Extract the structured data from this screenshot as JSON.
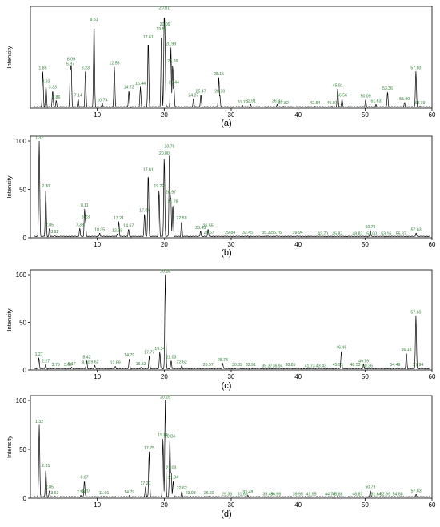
{
  "chart_data": [
    {
      "type": "line",
      "panel_label": "(a)",
      "ylabel": "Intensity",
      "xlim": [
        0,
        60
      ],
      "ylim": [
        0,
        100
      ],
      "xticks": [
        10,
        20,
        30,
        40,
        50,
        60
      ],
      "yticks": [],
      "line_color": "#000000",
      "label_color": "#2e7d32",
      "peaks": [
        {
          "rt": 1.85,
          "y": 38,
          "label": "1.85"
        },
        {
          "rt": 2.33,
          "y": 24,
          "label": "2.33"
        },
        {
          "rt": 3.33,
          "y": 18,
          "label": "3.33"
        },
        {
          "rt": 3.86,
          "y": 8,
          "label": "3.86"
        },
        {
          "rt": 5.97,
          "y": 42,
          "label": "5.97"
        },
        {
          "rt": 6.09,
          "y": 47,
          "label": "6.09"
        },
        {
          "rt": 7.14,
          "y": 10,
          "label": "7.14"
        },
        {
          "rt": 8.23,
          "y": 38,
          "label": "8.23"
        },
        {
          "rt": 9.51,
          "y": 88,
          "label": "9.51"
        },
        {
          "rt": 10.74,
          "y": 5,
          "label": "10.74"
        },
        {
          "rt": 12.55,
          "y": 43,
          "label": "12.55"
        },
        {
          "rt": 14.72,
          "y": 18,
          "label": "14.72"
        },
        {
          "rt": 16.44,
          "y": 22,
          "label": "16.44"
        },
        {
          "rt": 17.61,
          "y": 70,
          "label": "17.61"
        },
        {
          "rt": 19.59,
          "y": 78,
          "label": "19.59"
        },
        {
          "rt": 20.01,
          "y": 100,
          "label": "20.01"
        },
        {
          "rt": 20.09,
          "y": 83,
          "label": "20.09"
        },
        {
          "rt": 20.99,
          "y": 63,
          "label": "20.99"
        },
        {
          "rt": 21.26,
          "y": 45,
          "label": "21.26"
        },
        {
          "rt": 21.44,
          "y": 23,
          "label": "21.44"
        },
        {
          "rt": 24.37,
          "y": 10,
          "label": "24.37"
        },
        {
          "rt": 25.47,
          "y": 14,
          "label": "25.47"
        },
        {
          "rt": 28.15,
          "y": 32,
          "label": "28.15"
        },
        {
          "rt": 28.3,
          "y": 14,
          "label": "28.30"
        },
        {
          "rt": 31.7,
          "y": 3,
          "label": "31.70"
        },
        {
          "rt": 32.91,
          "y": 4,
          "label": "32.91"
        },
        {
          "rt": 36.87,
          "y": 4,
          "label": "36.87"
        },
        {
          "rt": 37.82,
          "y": 2,
          "label": "37.82"
        },
        {
          "rt": 42.54,
          "y": 2,
          "label": "42.54"
        },
        {
          "rt": 45.07,
          "y": 2,
          "label": "45.07"
        },
        {
          "rt": 45.91,
          "y": 20,
          "label": "45.91"
        },
        {
          "rt": 46.56,
          "y": 10,
          "label": "46.56"
        },
        {
          "rt": 50.09,
          "y": 9,
          "label": "50.09"
        },
        {
          "rt": 51.63,
          "y": 4,
          "label": "51.63"
        },
        {
          "rt": 53.36,
          "y": 17,
          "label": "53.36"
        },
        {
          "rt": 55.9,
          "y": 6,
          "label": "55.90"
        },
        {
          "rt": 57.6,
          "y": 38,
          "label": "57.60"
        },
        {
          "rt": 58.19,
          "y": 2,
          "label": "58.19"
        }
      ]
    },
    {
      "type": "line",
      "panel_label": "(b)",
      "ylabel": "Intensity",
      "xlim": [
        0,
        60
      ],
      "ylim": [
        0,
        100
      ],
      "xticks": [
        10,
        20,
        30,
        40,
        50,
        60
      ],
      "yticks": [
        0,
        50,
        100
      ],
      "line_color": "#000000",
      "label_color": "#2e7d32",
      "peaks": [
        {
          "rt": 1.32,
          "y": 100,
          "label": "1.32"
        },
        {
          "rt": 2.3,
          "y": 50,
          "label": "2.30"
        },
        {
          "rt": 2.85,
          "y": 10,
          "label": "2.85"
        },
        {
          "rt": 3.62,
          "y": 3,
          "label": "3.62"
        },
        {
          "rt": 7.38,
          "y": 10,
          "label": "7.38"
        },
        {
          "rt": 8.11,
          "y": 30,
          "label": "8.11"
        },
        {
          "rt": 8.23,
          "y": 18,
          "label": "8.23"
        },
        {
          "rt": 10.35,
          "y": 5,
          "label": "10.35"
        },
        {
          "rt": 12.98,
          "y": 4,
          "label": "12.98"
        },
        {
          "rt": 13.21,
          "y": 17,
          "label": "13.21"
        },
        {
          "rt": 14.67,
          "y": 9,
          "label": "14.67"
        },
        {
          "rt": 17.06,
          "y": 25,
          "label": "17.06"
        },
        {
          "rt": 17.61,
          "y": 67,
          "label": "17.61"
        },
        {
          "rt": 19.22,
          "y": 50,
          "label": "19.22"
        },
        {
          "rt": 20.0,
          "y": 84,
          "label": "20.00"
        },
        {
          "rt": 20.79,
          "y": 91,
          "label": "20.79"
        },
        {
          "rt": 20.97,
          "y": 44,
          "label": "20.97"
        },
        {
          "rt": 21.28,
          "y": 34,
          "label": "21.28"
        },
        {
          "rt": 22.59,
          "y": 17,
          "label": "22.59"
        },
        {
          "rt": 25.43,
          "y": 7,
          "label": "25.43"
        },
        {
          "rt": 26.55,
          "y": 9,
          "label": "26.55"
        },
        {
          "rt": 26.67,
          "y": 2,
          "label": "26.67"
        },
        {
          "rt": 29.84,
          "y": 2,
          "label": "29.84"
        },
        {
          "rt": 32.45,
          "y": 2,
          "label": "32.45"
        },
        {
          "rt": 35.37,
          "y": 2,
          "label": "35.37"
        },
        {
          "rt": 36.76,
          "y": 2,
          "label": "36.76"
        },
        {
          "rt": 39.94,
          "y": 2,
          "label": "39.94"
        },
        {
          "rt": 43.7,
          "y": 1,
          "label": "43.70"
        },
        {
          "rt": 45.87,
          "y": 1,
          "label": "45.87"
        },
        {
          "rt": 48.87,
          "y": 1,
          "label": "48.87"
        },
        {
          "rt": 50.79,
          "y": 8,
          "label": "50.79"
        },
        {
          "rt": 51.0,
          "y": 1,
          "label": "51.00"
        },
        {
          "rt": 53.16,
          "y": 1,
          "label": "53.16"
        },
        {
          "rt": 55.37,
          "y": 1,
          "label": "55.37"
        },
        {
          "rt": 57.63,
          "y": 5,
          "label": "57.63"
        }
      ]
    },
    {
      "type": "line",
      "panel_label": "(c)",
      "ylabel": "Intensity",
      "xlim": [
        0,
        60
      ],
      "ylim": [
        0,
        100
      ],
      "xticks": [
        10,
        20,
        30,
        40,
        50,
        60
      ],
      "yticks": [
        0,
        50,
        100
      ],
      "line_color": "#000000",
      "label_color": "#2e7d32",
      "peaks": [
        {
          "rt": 1.27,
          "y": 13,
          "label": "1.27"
        },
        {
          "rt": 2.27,
          "y": 6,
          "label": "2.27"
        },
        {
          "rt": 3.79,
          "y": 2,
          "label": "3.79"
        },
        {
          "rt": 5.62,
          "y": 2,
          "label": "5.62"
        },
        {
          "rt": 6.17,
          "y": 3,
          "label": "6.17"
        },
        {
          "rt": 8.3,
          "y": 4,
          "label": "8.30"
        },
        {
          "rt": 8.42,
          "y": 10,
          "label": "8.42"
        },
        {
          "rt": 9.62,
          "y": 5,
          "label": "9.62"
        },
        {
          "rt": 12.69,
          "y": 4,
          "label": "12.69"
        },
        {
          "rt": 14.79,
          "y": 12,
          "label": "14.79"
        },
        {
          "rt": 16.53,
          "y": 3,
          "label": "16.53"
        },
        {
          "rt": 17.77,
          "y": 15,
          "label": "17.77"
        },
        {
          "rt": 19.34,
          "y": 19,
          "label": "19.34"
        },
        {
          "rt": 20.16,
          "y": 100,
          "label": "20.16"
        },
        {
          "rt": 21.03,
          "y": 10,
          "label": "21.03"
        },
        {
          "rt": 22.62,
          "y": 5,
          "label": "22.62"
        },
        {
          "rt": 26.57,
          "y": 2,
          "label": "26.57"
        },
        {
          "rt": 28.73,
          "y": 7,
          "label": "28.73"
        },
        {
          "rt": 30.89,
          "y": 2,
          "label": "30.89"
        },
        {
          "rt": 32.91,
          "y": 2,
          "label": "32.91"
        },
        {
          "rt": 35.37,
          "y": 1,
          "label": "35.37"
        },
        {
          "rt": 36.94,
          "y": 1,
          "label": "36.94"
        },
        {
          "rt": 38.85,
          "y": 2,
          "label": "38.85"
        },
        {
          "rt": 41.73,
          "y": 1,
          "label": "41.73"
        },
        {
          "rt": 43.43,
          "y": 1,
          "label": "43.43"
        },
        {
          "rt": 45.91,
          "y": 2,
          "label": "45.91"
        },
        {
          "rt": 46.46,
          "y": 20,
          "label": "46.46"
        },
        {
          "rt": 48.53,
          "y": 2,
          "label": "48.53"
        },
        {
          "rt": 49.79,
          "y": 6,
          "label": "49.79"
        },
        {
          "rt": 50.36,
          "y": 1,
          "label": "50.36"
        },
        {
          "rt": 54.49,
          "y": 2,
          "label": "54.49"
        },
        {
          "rt": 56.18,
          "y": 18,
          "label": "56.18"
        },
        {
          "rt": 57.6,
          "y": 57,
          "label": "57.60"
        },
        {
          "rt": 57.94,
          "y": 2,
          "label": "57.94"
        }
      ]
    },
    {
      "type": "line",
      "panel_label": "(d)",
      "ylabel": "Intensity",
      "xlim": [
        0,
        60
      ],
      "ylim": [
        0,
        100
      ],
      "xticks": [
        10,
        20,
        30,
        40,
        50,
        60
      ],
      "yticks": [
        0,
        50,
        100
      ],
      "line_color": "#000000",
      "label_color": "#2e7d32",
      "peaks": [
        {
          "rt": 1.32,
          "y": 75,
          "label": "1.32"
        },
        {
          "rt": 2.31,
          "y": 30,
          "label": "2.31"
        },
        {
          "rt": 2.85,
          "y": 8,
          "label": "2.85"
        },
        {
          "rt": 3.63,
          "y": 2,
          "label": "3.63"
        },
        {
          "rt": 7.54,
          "y": 3,
          "label": "7.54"
        },
        {
          "rt": 8.07,
          "y": 18,
          "label": "8.07"
        },
        {
          "rt": 8.2,
          "y": 4,
          "label": "8.20"
        },
        {
          "rt": 11.01,
          "y": 2,
          "label": "11.01"
        },
        {
          "rt": 14.79,
          "y": 3,
          "label": "14.79"
        },
        {
          "rt": 17.21,
          "y": 12,
          "label": "17.21"
        },
        {
          "rt": 17.75,
          "y": 48,
          "label": "17.75"
        },
        {
          "rt": 19.81,
          "y": 61,
          "label": "19.81"
        },
        {
          "rt": 20.16,
          "y": 100,
          "label": "20.16"
        },
        {
          "rt": 20.84,
          "y": 60,
          "label": "20.84"
        },
        {
          "rt": 21.03,
          "y": 28,
          "label": "21.03"
        },
        {
          "rt": 21.34,
          "y": 18,
          "label": "21.34"
        },
        {
          "rt": 22.62,
          "y": 7,
          "label": "22.62"
        },
        {
          "rt": 23.93,
          "y": 2,
          "label": "23.93"
        },
        {
          "rt": 26.69,
          "y": 2,
          "label": "26.69"
        },
        {
          "rt": 29.36,
          "y": 1,
          "label": "29.36"
        },
        {
          "rt": 31.69,
          "y": 1,
          "label": "31.69"
        },
        {
          "rt": 32.48,
          "y": 3,
          "label": "32.48"
        },
        {
          "rt": 35.49,
          "y": 1,
          "label": "35.49"
        },
        {
          "rt": 36.66,
          "y": 1,
          "label": "36.66"
        },
        {
          "rt": 39.95,
          "y": 1,
          "label": "39.95"
        },
        {
          "rt": 41.95,
          "y": 1,
          "label": "41.95"
        },
        {
          "rt": 44.78,
          "y": 1,
          "label": "44.78"
        },
        {
          "rt": 45.88,
          "y": 1,
          "label": "45.88"
        },
        {
          "rt": 48.87,
          "y": 1,
          "label": "48.87"
        },
        {
          "rt": 50.79,
          "y": 8,
          "label": "50.79"
        },
        {
          "rt": 51.64,
          "y": 1,
          "label": "51.64"
        },
        {
          "rt": 52.99,
          "y": 1,
          "label": "52.99"
        },
        {
          "rt": 54.88,
          "y": 1,
          "label": "54.88"
        },
        {
          "rt": 57.63,
          "y": 4,
          "label": "57.63"
        }
      ]
    }
  ]
}
